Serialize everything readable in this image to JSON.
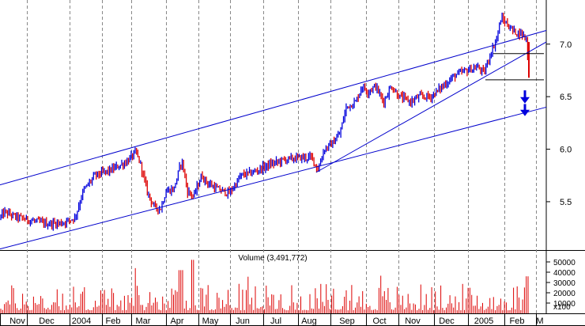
{
  "chart_data": {
    "type": "candlestick",
    "title": "",
    "x_tick_labels": [
      "Nov",
      "Dec",
      "2004",
      "Feb",
      "Mar",
      "Apr",
      "May",
      "Jun",
      "Jul",
      "Aug",
      "Sep",
      "Oct",
      "Nov",
      "Dec",
      "2005",
      "Feb",
      "M"
    ],
    "price_axis": {
      "ticks": [
        5.5,
        6.0,
        6.5,
        7.0
      ],
      "range": [
        5.04,
        7.42
      ],
      "side": "right",
      "grid": "vertical-dashed"
    },
    "price_series": {
      "anchors": [
        [
          0,
          5.35
        ],
        [
          6,
          5.4
        ],
        [
          18,
          5.36
        ],
        [
          40,
          5.32
        ],
        [
          60,
          5.29
        ],
        [
          80,
          5.3
        ],
        [
          95,
          5.35
        ],
        [
          105,
          5.6
        ],
        [
          120,
          5.75
        ],
        [
          140,
          5.8
        ],
        [
          160,
          5.88
        ],
        [
          172,
          5.97
        ],
        [
          178,
          5.85
        ],
        [
          186,
          5.6
        ],
        [
          195,
          5.45
        ],
        [
          203,
          5.43
        ],
        [
          210,
          5.6
        ],
        [
          220,
          5.62
        ],
        [
          230,
          5.9
        ],
        [
          237,
          5.6
        ],
        [
          245,
          5.55
        ],
        [
          255,
          5.75
        ],
        [
          262,
          5.68
        ],
        [
          275,
          5.62
        ],
        [
          290,
          5.58
        ],
        [
          305,
          5.75
        ],
        [
          320,
          5.78
        ],
        [
          340,
          5.85
        ],
        [
          360,
          5.9
        ],
        [
          380,
          5.92
        ],
        [
          395,
          5.92
        ],
        [
          402,
          5.8
        ],
        [
          410,
          6.0
        ],
        [
          420,
          6.05
        ],
        [
          430,
          6.15
        ],
        [
          438,
          6.4
        ],
        [
          450,
          6.45
        ],
        [
          458,
          6.6
        ],
        [
          465,
          6.55
        ],
        [
          475,
          6.6
        ],
        [
          485,
          6.45
        ],
        [
          495,
          6.6
        ],
        [
          505,
          6.5
        ],
        [
          520,
          6.45
        ],
        [
          530,
          6.5
        ],
        [
          545,
          6.5
        ],
        [
          560,
          6.6
        ],
        [
          575,
          6.7
        ],
        [
          590,
          6.75
        ],
        [
          605,
          6.78
        ],
        [
          612,
          6.72
        ],
        [
          620,
          6.9
        ],
        [
          628,
          7.05
        ],
        [
          634,
          7.25
        ],
        [
          640,
          7.2
        ],
        [
          650,
          7.12
        ],
        [
          660,
          7.1
        ],
        [
          666,
          7.05
        ],
        [
          669,
          6.7
        ]
      ]
    },
    "annotations": [
      {
        "type": "trend-line",
        "from": [
          0,
          5.66
        ],
        "to": [
          691,
          7.13
        ]
      },
      {
        "type": "trend-line",
        "from": [
          0,
          5.05
        ],
        "to": [
          691,
          6.4
        ]
      },
      {
        "type": "trend-line",
        "from": [
          400,
          5.78
        ],
        "to": [
          691,
          7.02
        ]
      },
      {
        "type": "horizontal-line",
        "from": [
          624,
          6.91
        ],
        "to": [
          688,
          6.91
        ]
      },
      {
        "type": "horizontal-line",
        "from": [
          614,
          6.66
        ],
        "to": [
          688,
          6.66
        ]
      },
      {
        "type": "down-arrow",
        "x": 664,
        "y_range": [
          6.56,
          6.45
        ]
      },
      {
        "type": "down-arrow",
        "x": 664,
        "y_range": [
          6.43,
          6.33
        ]
      }
    ],
    "volume": {
      "label": "Volume (3,491,772)",
      "ticks": [
        10000,
        20000,
        30000,
        40000,
        50000
      ],
      "tick_labels": [
        "10000",
        "20000",
        "30000",
        "40000",
        "50000"
      ],
      "multiplier_label": "x100",
      "range": [
        0,
        60000
      ]
    },
    "colors": {
      "up": "#0000dd",
      "down": "#dd0000",
      "trendline": "#0000cc",
      "grid": "#888888",
      "volume": "#dd0000",
      "annotation_line": "#000000",
      "arrow": "#0000dd"
    }
  }
}
